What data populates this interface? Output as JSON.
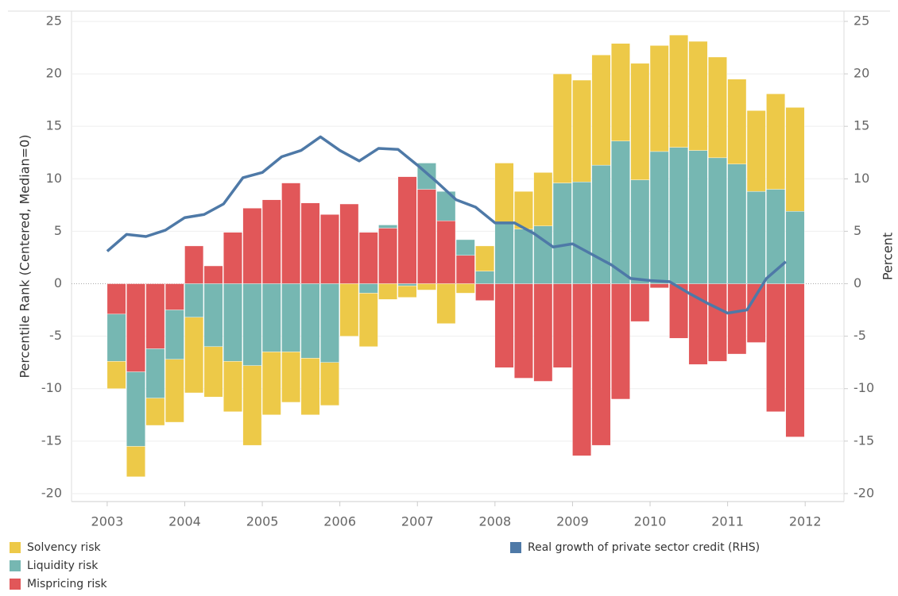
{
  "chart_data": {
    "type": "bar",
    "y_label": "Percentile Rank (Centered, Median=0)",
    "y2_label": "Percent",
    "x": [
      2003,
      2003.25,
      2003.5,
      2003.75,
      2004,
      2004.25,
      2004.5,
      2004.75,
      2005,
      2005.25,
      2005.5,
      2005.75,
      2006,
      2006.25,
      2006.5,
      2006.75,
      2007,
      2007.25,
      2007.5,
      2007.75,
      2008,
      2008.25,
      2008.5,
      2008.75,
      2009,
      2009.25,
      2009.5,
      2009.75,
      2010,
      2010.25,
      2010.5,
      2010.75,
      2011,
      2011.25,
      2011.5,
      2011.75
    ],
    "xlim": [
      2002.54,
      2012.5
    ],
    "xticks": [
      2003,
      2004,
      2005,
      2006,
      2007,
      2008,
      2009,
      2010,
      2011,
      2012
    ],
    "ylim": [
      -20.76,
      25.98
    ],
    "yticks": [
      -20,
      -15,
      -10,
      -5,
      0,
      5,
      10,
      15,
      20,
      25
    ],
    "y2lim": [
      -20.76,
      25.98
    ],
    "y2ticks": [
      -20,
      -15,
      -10,
      -5,
      0,
      5,
      10,
      15,
      20,
      25
    ],
    "grid": true,
    "series": [
      {
        "name": "Mispricing risk",
        "color": "#e15759",
        "type": "bar",
        "values": [
          -2.9,
          -8.4,
          -6.2,
          -2.5,
          3.6,
          1.7,
          4.9,
          7.2,
          8.0,
          9.6,
          7.7,
          6.6,
          7.6,
          4.9,
          5.3,
          10.2,
          9.0,
          6.0,
          2.7,
          -1.6,
          -8.0,
          -9.0,
          -9.3,
          -8.0,
          -16.4,
          -15.4,
          -11.0,
          -3.6,
          -0.4,
          -5.2,
          -7.7,
          -7.4,
          -6.7,
          -5.6,
          -12.2,
          -14.6
        ]
      },
      {
        "name": "Liquidity risk",
        "color": "#76b7b2",
        "type": "bar",
        "values": [
          -4.5,
          -7.1,
          -4.7,
          -4.7,
          -3.2,
          -6.0,
          -7.4,
          -7.8,
          -6.5,
          -6.5,
          -7.1,
          -7.5,
          0,
          -0.9,
          0.3,
          -0.2,
          2.5,
          2.8,
          1.5,
          1.2,
          5.8,
          5.2,
          5.5,
          9.6,
          9.7,
          11.3,
          13.6,
          9.9,
          12.6,
          13.0,
          12.7,
          12.0,
          11.4,
          8.8,
          9.0,
          6.9
        ]
      },
      {
        "name": "Solvency risk",
        "color": "#edc948",
        "type": "bar",
        "values": [
          -2.6,
          -2.9,
          -2.6,
          -6.0,
          -7.2,
          -4.8,
          -4.8,
          -7.6,
          -6.0,
          -4.8,
          -5.4,
          -4.1,
          -5.0,
          -5.1,
          -1.5,
          -1.1,
          -0.6,
          -3.8,
          -0.9,
          2.4,
          5.7,
          3.6,
          5.1,
          10.4,
          9.7,
          10.5,
          9.3,
          11.1,
          10.1,
          10.7,
          10.4,
          9.6,
          8.1,
          7.7,
          9.1,
          9.9
        ]
      },
      {
        "name": "Real growth of private sector credit (RHS)",
        "color": "#4e79a7",
        "type": "line",
        "axis": "y2",
        "values": [
          3.1,
          4.7,
          4.5,
          5.1,
          6.3,
          6.6,
          7.6,
          10.1,
          10.6,
          12.1,
          12.7,
          14.0,
          12.7,
          11.7,
          12.9,
          12.8,
          11.3,
          9.7,
          8.0,
          7.3,
          5.8,
          5.8,
          4.8,
          3.5,
          3.8,
          2.8,
          1.8,
          0.5,
          0.3,
          0.2,
          -0.9,
          -1.9,
          -2.8,
          -2.5,
          0.5,
          2.1
        ]
      }
    ]
  }
}
